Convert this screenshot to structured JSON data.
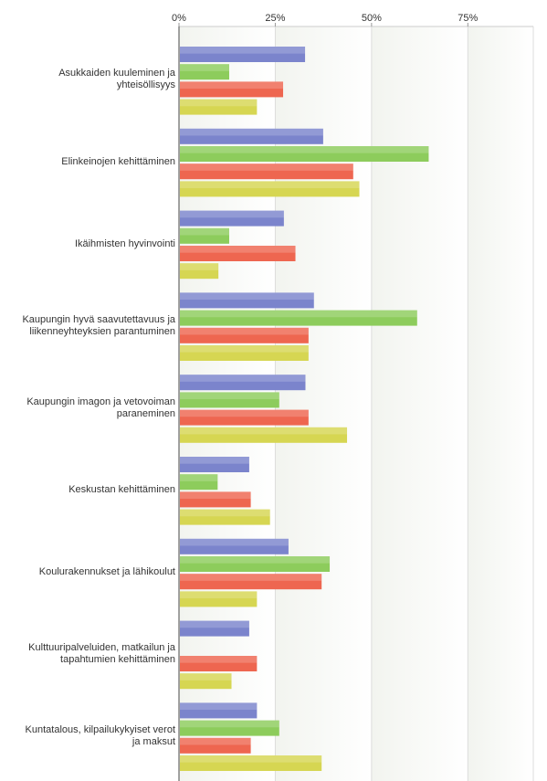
{
  "chart_data": {
    "type": "bar",
    "orientation": "horizontal",
    "xlim": [
      0,
      92
    ],
    "x_ticks": [
      "0%",
      "25%",
      "50%",
      "75%"
    ],
    "x_tick_values": [
      0,
      25,
      50,
      75
    ],
    "grid": "vertical",
    "legend": "none",
    "categories": [
      [
        "Asukkaiden kuuleminen ja",
        "yhteisöllisyys"
      ],
      [
        "Elinkeinojen kehittäminen"
      ],
      [
        "Ikäihmisten hyvinvointi"
      ],
      [
        "Kaupungin hyvä saavutettavuus ja",
        "liikenneyhteyksien parantuminen"
      ],
      [
        "Kaupungin imagon ja vetovoiman",
        "paraneminen"
      ],
      [
        "Keskustan kehittäminen"
      ],
      [
        "Koulurakennukset ja lähikoulut"
      ],
      [
        "Kulttuuripalveluiden, matkailun ja",
        "tapahtumien kehittäminen"
      ],
      [
        "Kuntatalous, kilpailukykyiset verot",
        "ja maksut"
      ]
    ],
    "series": [
      {
        "color": "#7b84cc",
        "values": [
          32.5,
          37.2,
          27.0,
          34.8,
          32.6,
          18.0,
          28.2,
          18.0,
          20.0
        ]
      },
      {
        "color": "#8dcc5c",
        "values": [
          12.8,
          64.6,
          12.8,
          61.6,
          25.8,
          9.8,
          38.9,
          0,
          25.8
        ]
      },
      {
        "color": "#ee6650",
        "values": [
          26.8,
          45.0,
          30.0,
          33.4,
          33.4,
          18.4,
          36.8,
          20.0,
          18.4
        ]
      },
      {
        "color": "#d6d652",
        "values": [
          20.0,
          46.6,
          10.0,
          33.4,
          43.4,
          23.4,
          20.0,
          13.4,
          36.8
        ]
      }
    ]
  }
}
